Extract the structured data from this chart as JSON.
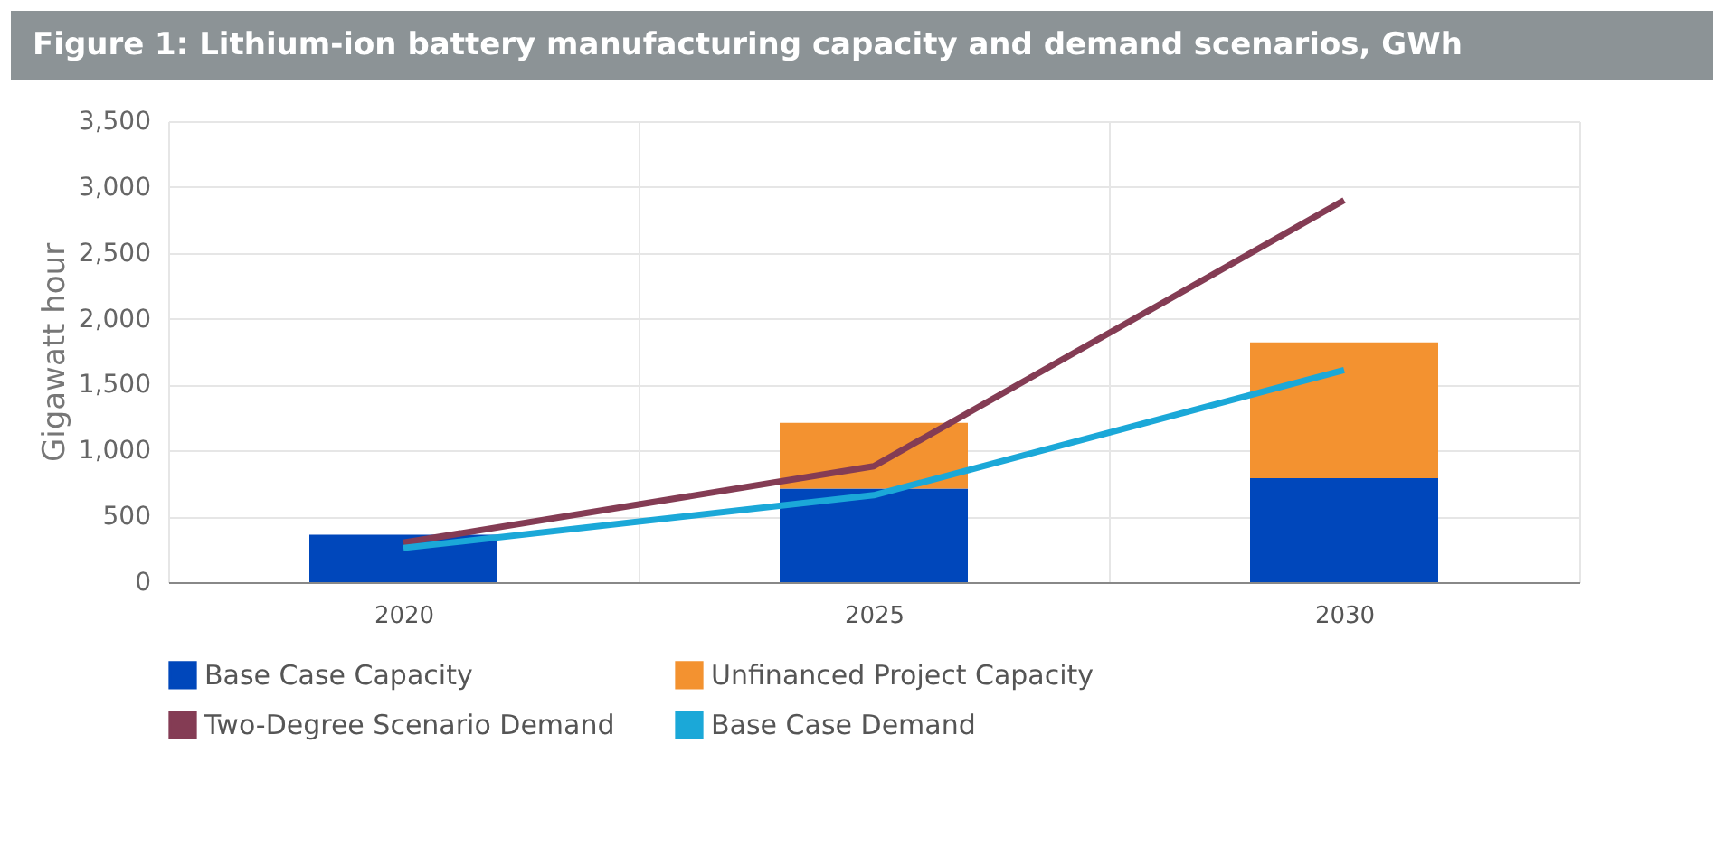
{
  "chart_data": {
    "type": "bar",
    "title": "Figure 1: Lithium-ion battery manufacturing capacity and demand scenarios, GWh",
    "ylabel": "Gigawatt hour",
    "categories": [
      "2020",
      "2025",
      "2030"
    ],
    "stacked": true,
    "ylim": [
      0,
      3500
    ],
    "yticks": [
      0,
      {
        "value": 500,
        "label": "500"
      },
      {
        "value": 1000,
        "label": "1,000"
      },
      {
        "value": 1500,
        "label": "1,500"
      },
      {
        "value": 2000,
        "label": "2,000"
      },
      {
        "value": 2500,
        "label": "2,500"
      },
      {
        "value": 3000,
        "label": "3,000"
      },
      {
        "value": 3500,
        "label": "3,500"
      }
    ],
    "grid": true,
    "legend": "bottom",
    "series": [
      {
        "name": "Base Case Capacity",
        "color": "#0047bb",
        "values": [
          360,
          710,
          790
        ]
      },
      {
        "name": "Unfinanced Project Capacity",
        "color": "#f39230",
        "values": [
          0,
          500,
          1030
        ]
      },
      {
        "name": "Two-Degree Scenario Demand",
        "type": "line",
        "color": "#843c54",
        "values": [
          300,
          880,
          2900
        ]
      },
      {
        "name": "Base Case Demand",
        "type": "line",
        "color": "#1ba8d8",
        "values": [
          260,
          660,
          1610
        ]
      }
    ]
  }
}
